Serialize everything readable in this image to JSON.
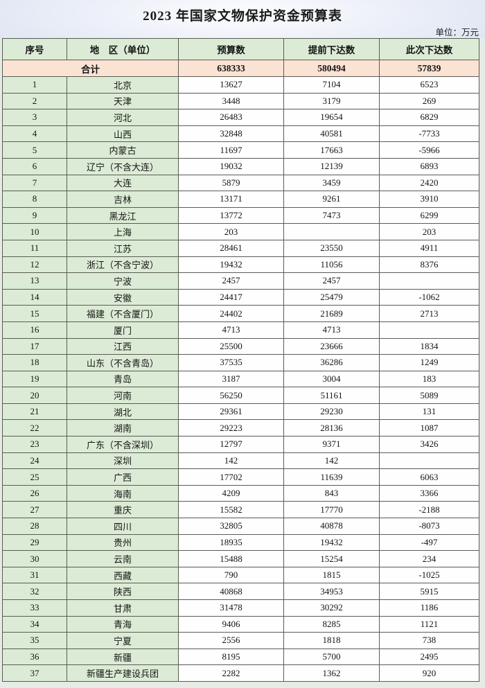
{
  "title": "2023 年国家文物保护资金预算表",
  "unit_note": "单位：万元",
  "colors": {
    "header_green": "#dcebd5",
    "total_pink": "#fbe3d4",
    "band_blue": "#dde4f2",
    "border": "#585c52"
  },
  "table": {
    "headers": [
      "序号",
      "地　区（单位）",
      "预算数",
      "提前下达数",
      "此次下达数"
    ],
    "total_row": {
      "label": "合计",
      "budget": "638333",
      "advance": "580494",
      "current": "57839"
    },
    "rows": [
      {
        "no": "1",
        "region": "北京",
        "budget": "13627",
        "advance": "7104",
        "current": "6523"
      },
      {
        "no": "2",
        "region": "天津",
        "budget": "3448",
        "advance": "3179",
        "current": "269"
      },
      {
        "no": "3",
        "region": "河北",
        "budget": "26483",
        "advance": "19654",
        "current": "6829"
      },
      {
        "no": "4",
        "region": "山西",
        "budget": "32848",
        "advance": "40581",
        "current": "-7733"
      },
      {
        "no": "5",
        "region": "内蒙古",
        "budget": "11697",
        "advance": "17663",
        "current": "-5966"
      },
      {
        "no": "6",
        "region": "辽宁（不含大连）",
        "budget": "19032",
        "advance": "12139",
        "current": "6893"
      },
      {
        "no": "7",
        "region": "大连",
        "budget": "5879",
        "advance": "3459",
        "current": "2420"
      },
      {
        "no": "8",
        "region": "吉林",
        "budget": "13171",
        "advance": "9261",
        "current": "3910"
      },
      {
        "no": "9",
        "region": "黑龙江",
        "budget": "13772",
        "advance": "7473",
        "current": "6299"
      },
      {
        "no": "10",
        "region": "上海",
        "budget": "203",
        "advance": "",
        "current": "203"
      },
      {
        "no": "11",
        "region": "江苏",
        "budget": "28461",
        "advance": "23550",
        "current": "4911"
      },
      {
        "no": "12",
        "region": "浙江（不含宁波）",
        "budget": "19432",
        "advance": "11056",
        "current": "8376"
      },
      {
        "no": "13",
        "region": "宁波",
        "budget": "2457",
        "advance": "2457",
        "current": ""
      },
      {
        "no": "14",
        "region": "安徽",
        "budget": "24417",
        "advance": "25479",
        "current": "-1062"
      },
      {
        "no": "15",
        "region": "福建（不含厦门）",
        "budget": "24402",
        "advance": "21689",
        "current": "2713"
      },
      {
        "no": "16",
        "region": "厦门",
        "budget": "4713",
        "advance": "4713",
        "current": ""
      },
      {
        "no": "17",
        "region": "江西",
        "budget": "25500",
        "advance": "23666",
        "current": "1834"
      },
      {
        "no": "18",
        "region": "山东（不含青岛）",
        "budget": "37535",
        "advance": "36286",
        "current": "1249"
      },
      {
        "no": "19",
        "region": "青岛",
        "budget": "3187",
        "advance": "3004",
        "current": "183"
      },
      {
        "no": "20",
        "region": "河南",
        "budget": "56250",
        "advance": "51161",
        "current": "5089"
      },
      {
        "no": "21",
        "region": "湖北",
        "budget": "29361",
        "advance": "29230",
        "current": "131"
      },
      {
        "no": "22",
        "region": "湖南",
        "budget": "29223",
        "advance": "28136",
        "current": "1087"
      },
      {
        "no": "23",
        "region": "广东（不含深圳）",
        "budget": "12797",
        "advance": "9371",
        "current": "3426"
      },
      {
        "no": "24",
        "region": "深圳",
        "budget": "142",
        "advance": "142",
        "current": ""
      },
      {
        "no": "25",
        "region": "广西",
        "budget": "17702",
        "advance": "11639",
        "current": "6063"
      },
      {
        "no": "26",
        "region": "海南",
        "budget": "4209",
        "advance": "843",
        "current": "3366"
      },
      {
        "no": "27",
        "region": "重庆",
        "budget": "15582",
        "advance": "17770",
        "current": "-2188"
      },
      {
        "no": "28",
        "region": "四川",
        "budget": "32805",
        "advance": "40878",
        "current": "-8073"
      },
      {
        "no": "29",
        "region": "贵州",
        "budget": "18935",
        "advance": "19432",
        "current": "-497"
      },
      {
        "no": "30",
        "region": "云南",
        "budget": "15488",
        "advance": "15254",
        "current": "234"
      },
      {
        "no": "31",
        "region": "西藏",
        "budget": "790",
        "advance": "1815",
        "current": "-1025"
      },
      {
        "no": "32",
        "region": "陕西",
        "budget": "40868",
        "advance": "34953",
        "current": "5915"
      },
      {
        "no": "33",
        "region": "甘肃",
        "budget": "31478",
        "advance": "30292",
        "current": "1186"
      },
      {
        "no": "34",
        "region": "青海",
        "budget": "9406",
        "advance": "8285",
        "current": "1121"
      },
      {
        "no": "35",
        "region": "宁夏",
        "budget": "2556",
        "advance": "1818",
        "current": "738"
      },
      {
        "no": "36",
        "region": "新疆",
        "budget": "8195",
        "advance": "5700",
        "current": "2495"
      },
      {
        "no": "37",
        "region": "新疆生产建设兵团",
        "budget": "2282",
        "advance": "1362",
        "current": "920"
      }
    ]
  }
}
